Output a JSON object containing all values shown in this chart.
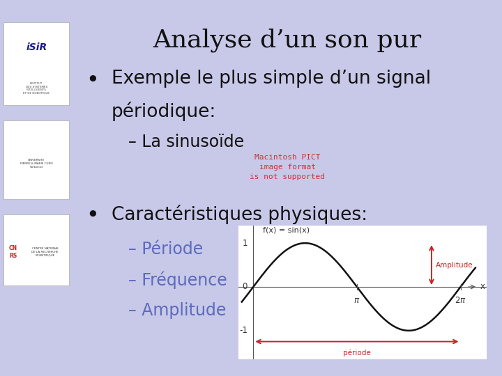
{
  "title": "Analyse d’un son pur",
  "background_color": "#c8c8e8",
  "slide_bg": "#ffffff",
  "bullet1_line1": "Exemple le plus simple d’un signal",
  "bullet1_line2": "périodique:",
  "sub1_text": "– La sinusoïde",
  "pict_line1": "Macintosh PICT",
  "pict_line2": "image format",
  "pict_line3": "is not supported",
  "bullet2": "Caractéristiques physiques:",
  "sub2a": "– Période",
  "sub2b": "– Fréquence",
  "sub2c": "– Amplitude",
  "sine_label": "f(x) = sin(x)",
  "amplitude_label": "Amplitude",
  "periode_label": "période",
  "x_label": "x",
  "title_fontsize": 26,
  "bullet_fontsize": 19,
  "sub_fontsize": 17,
  "blue_color": "#5b6bbd",
  "red_color": "#cc2222",
  "pict_red": "#cc3333",
  "text_color": "#111111",
  "sine_color": "#111111"
}
